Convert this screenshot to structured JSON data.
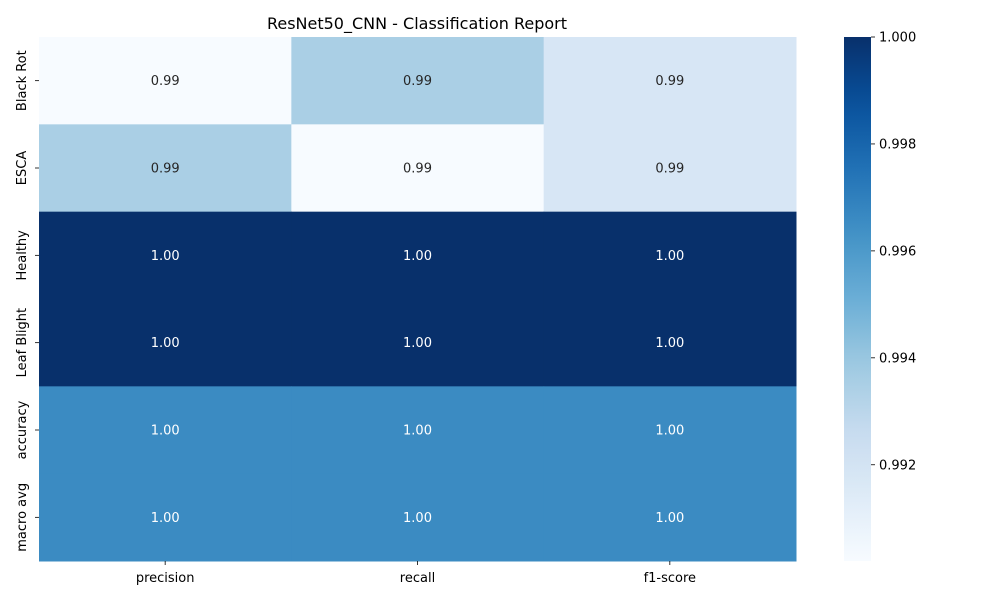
{
  "chart_data": {
    "type": "heatmap",
    "title": "ResNet50_CNN - Classification Report",
    "xlabel": "",
    "ylabel": "",
    "columns": [
      "precision",
      "recall",
      "f1-score"
    ],
    "rows": [
      "Black Rot",
      "ESCA",
      "Healthy",
      "Leaf Blight",
      "accuracy",
      "macro avg"
    ],
    "values": [
      [
        0.9902,
        0.9935,
        0.9918
      ],
      [
        0.9935,
        0.9902,
        0.9918
      ],
      [
        1.0,
        1.0,
        1.0
      ],
      [
        1.0,
        1.0,
        1.0
      ],
      [
        0.9966,
        0.9966,
        0.9966
      ],
      [
        0.9966,
        0.9966,
        0.9966
      ]
    ],
    "annotations": [
      [
        "0.99",
        "0.99",
        "0.99"
      ],
      [
        "0.99",
        "0.99",
        "0.99"
      ],
      [
        "1.00",
        "1.00",
        "1.00"
      ],
      [
        "1.00",
        "1.00",
        "1.00"
      ],
      [
        "1.00",
        "1.00",
        "1.00"
      ],
      [
        "1.00",
        "1.00",
        "1.00"
      ]
    ],
    "colormap": "Blues",
    "colorbar": {
      "range": [
        0.9902,
        1.0
      ],
      "ticks": [
        0.992,
        0.994,
        0.996,
        0.998,
        1.0
      ],
      "tick_labels": [
        "0.992",
        "0.994",
        "0.996",
        "0.998",
        "1.000"
      ]
    }
  }
}
